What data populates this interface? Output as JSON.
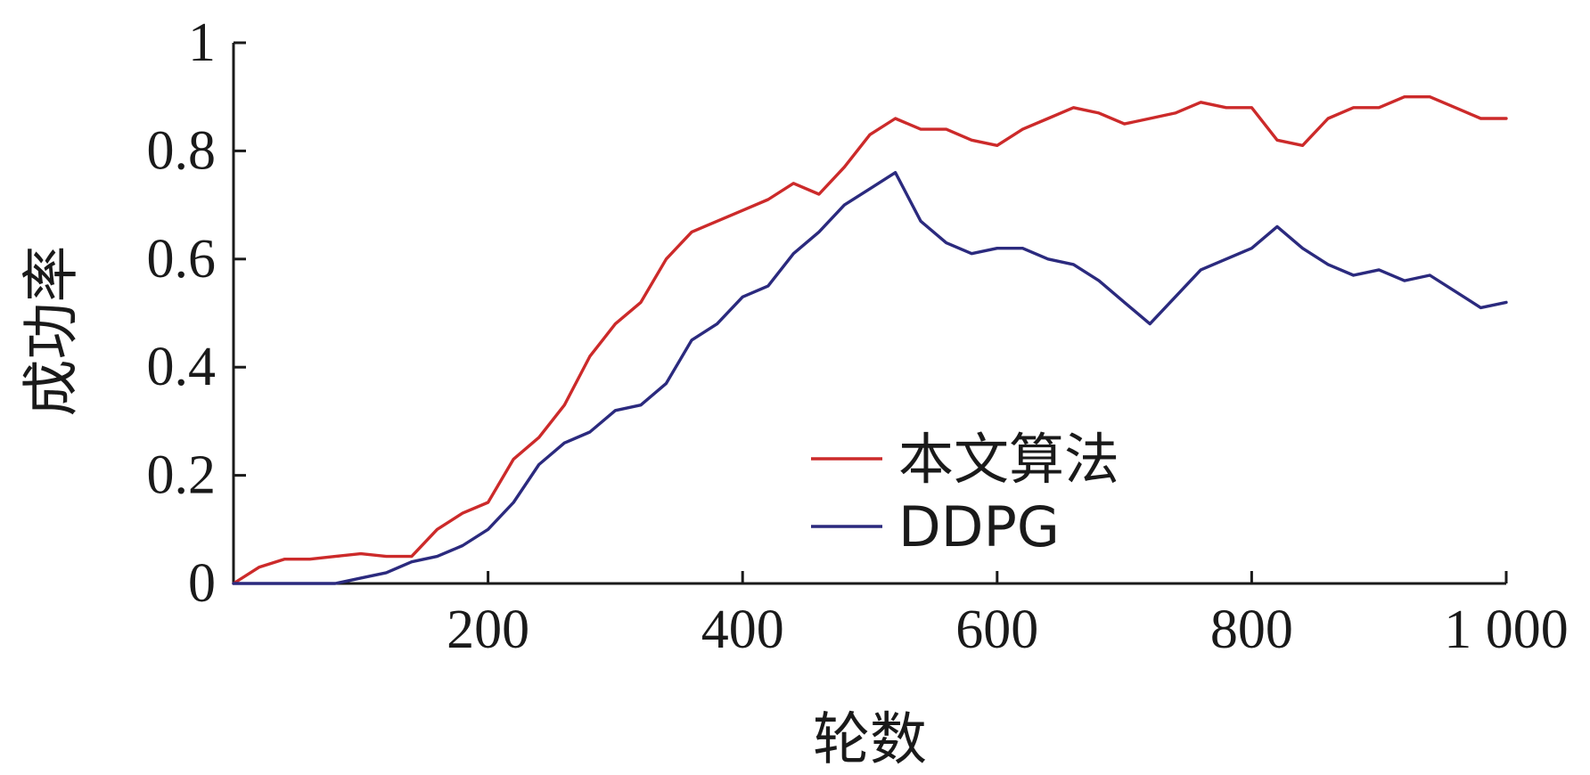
{
  "chart_data": {
    "type": "line",
    "title": "",
    "xlabel": "轮数",
    "ylabel": "成功率",
    "xlim": [
      0,
      1000
    ],
    "ylim": [
      0,
      1
    ],
    "x_ticks": [
      200,
      400,
      600,
      800,
      1000
    ],
    "x_tick_labels": [
      "200",
      "400",
      "600",
      "800",
      "1 000"
    ],
    "y_ticks": [
      0,
      0.2,
      0.4,
      0.6,
      0.8,
      1
    ],
    "y_tick_labels": [
      "0",
      "0.2",
      "0.4",
      "0.6",
      "0.8",
      "1"
    ],
    "grid": false,
    "legend_position": "lower-right",
    "series": [
      {
        "name": "本文算法",
        "color": "#cc2a2a",
        "x": [
          0,
          20,
          40,
          60,
          80,
          100,
          120,
          140,
          160,
          180,
          200,
          220,
          240,
          260,
          280,
          300,
          320,
          340,
          360,
          380,
          400,
          420,
          440,
          460,
          480,
          500,
          520,
          540,
          560,
          580,
          600,
          620,
          640,
          660,
          680,
          700,
          720,
          740,
          760,
          780,
          800,
          820,
          840,
          860,
          880,
          900,
          920,
          940,
          960,
          980,
          1000
        ],
        "y": [
          0.0,
          0.03,
          0.045,
          0.045,
          0.05,
          0.055,
          0.05,
          0.05,
          0.1,
          0.13,
          0.15,
          0.23,
          0.27,
          0.33,
          0.42,
          0.48,
          0.52,
          0.6,
          0.65,
          0.67,
          0.69,
          0.71,
          0.74,
          0.72,
          0.77,
          0.83,
          0.86,
          0.84,
          0.84,
          0.82,
          0.81,
          0.84,
          0.86,
          0.88,
          0.87,
          0.85,
          0.86,
          0.87,
          0.89,
          0.88,
          0.88,
          0.82,
          0.81,
          0.86,
          0.88,
          0.88,
          0.9,
          0.9,
          0.88,
          0.86,
          0.86
        ]
      },
      {
        "name": "DDPG",
        "color": "#2b2a7e",
        "x": [
          0,
          20,
          40,
          60,
          80,
          100,
          120,
          140,
          160,
          180,
          200,
          220,
          240,
          260,
          280,
          300,
          320,
          340,
          360,
          380,
          400,
          420,
          440,
          460,
          480,
          500,
          520,
          540,
          560,
          580,
          600,
          620,
          640,
          660,
          680,
          700,
          720,
          740,
          760,
          780,
          800,
          820,
          840,
          860,
          880,
          900,
          920,
          940,
          960,
          980,
          1000
        ],
        "y": [
          0.0,
          0.0,
          0.0,
          0.0,
          0.0,
          0.01,
          0.02,
          0.04,
          0.05,
          0.07,
          0.1,
          0.15,
          0.22,
          0.26,
          0.28,
          0.32,
          0.33,
          0.37,
          0.45,
          0.48,
          0.53,
          0.55,
          0.61,
          0.65,
          0.7,
          0.73,
          0.76,
          0.67,
          0.63,
          0.61,
          0.62,
          0.62,
          0.6,
          0.59,
          0.56,
          0.52,
          0.48,
          0.53,
          0.58,
          0.6,
          0.62,
          0.66,
          0.62,
          0.59,
          0.57,
          0.58,
          0.56,
          0.57,
          0.54,
          0.51,
          0.52
        ]
      }
    ]
  }
}
